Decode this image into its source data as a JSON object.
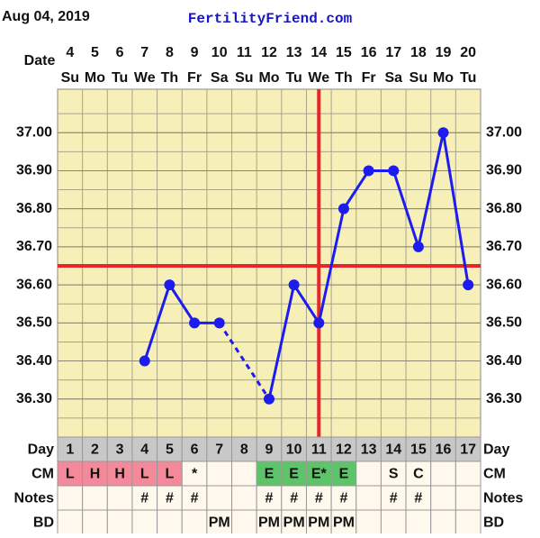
{
  "chart_data": {
    "type": "line",
    "date_text": "Aug 04, 2019",
    "site": "FertilityFriend.com",
    "date_label": "Date",
    "categories": [
      "4",
      "5",
      "6",
      "7",
      "8",
      "9",
      "10",
      "11",
      "12",
      "13",
      "14",
      "15",
      "16",
      "17",
      "18",
      "19",
      "20"
    ],
    "weekdays": [
      "Su",
      "Mo",
      "Tu",
      "We",
      "Th",
      "Fr",
      "Sa",
      "Su",
      "Mo",
      "Tu",
      "We",
      "Th",
      "Fr",
      "Sa",
      "Su",
      "Mo",
      "Tu"
    ],
    "series": [
      {
        "name": "Temperature",
        "color": "#1c1cf0",
        "values": [
          null,
          null,
          null,
          36.4,
          36.6,
          36.5,
          36.5,
          null,
          36.3,
          36.6,
          36.5,
          36.8,
          36.9,
          36.9,
          36.7,
          37.0,
          36.6
        ]
      }
    ],
    "ylim": [
      36.2,
      37.1
    ],
    "yticks": [
      {
        "value": 36.3,
        "label": "36.30"
      },
      {
        "value": 36.4,
        "label": "36.40"
      },
      {
        "value": 36.5,
        "label": "36.50"
      },
      {
        "value": 36.6,
        "label": "36.60"
      },
      {
        "value": 36.7,
        "label": "36.70"
      },
      {
        "value": 36.8,
        "label": "36.80"
      },
      {
        "value": 36.9,
        "label": "36.90"
      },
      {
        "value": 37.0,
        "label": "37.00"
      }
    ],
    "grid": true,
    "coverline": 36.65,
    "ovulation_day": 11,
    "marker_color": "#e8262a",
    "rows": [
      {
        "label": "Day",
        "values": [
          "1",
          "2",
          "3",
          "4",
          "5",
          "6",
          "7",
          "8",
          "9",
          "10",
          "11",
          "12",
          "13",
          "14",
          "15",
          "16",
          "17"
        ]
      },
      {
        "label": "CM",
        "values": [
          "L",
          "H",
          "H",
          "L",
          "L",
          "*",
          null,
          null,
          "E",
          "E",
          "E*",
          "E",
          null,
          "S",
          "C",
          null,
          null
        ],
        "colors": [
          "#f4899a",
          "#f4899a",
          "#f4899a",
          "#f4899a",
          "#f4899a",
          null,
          null,
          null,
          "#5ec46a",
          "#5ec46a",
          "#5ec46a",
          "#5ec46a",
          null,
          null,
          null,
          null,
          null
        ]
      },
      {
        "label": "Notes",
        "values": [
          null,
          null,
          null,
          "#",
          "#",
          "#",
          null,
          null,
          "#",
          "#",
          "#",
          "#",
          null,
          "#",
          "#",
          null,
          null
        ]
      },
      {
        "label": "BD",
        "values": [
          null,
          null,
          null,
          null,
          null,
          null,
          "PM",
          null,
          "PM",
          "PM",
          "PM",
          "PM",
          null,
          null,
          null,
          null,
          null
        ]
      }
    ]
  }
}
